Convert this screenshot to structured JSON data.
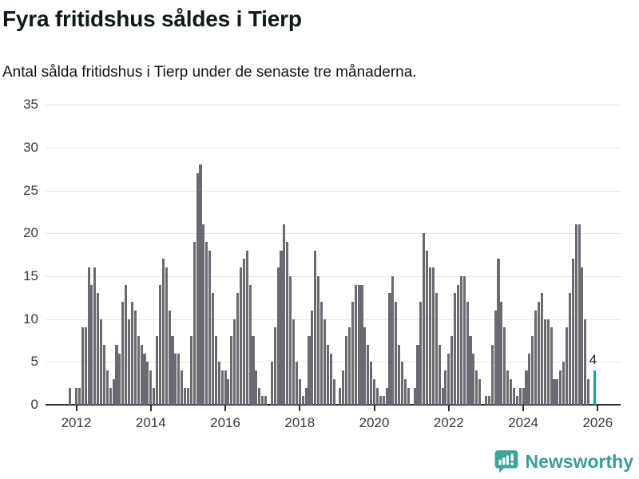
{
  "header": {
    "title": "Fyra fritidshus såldes i Tierp",
    "subtitle": "Antal sålda fritidshus i Tierp under de senaste tre månaderna."
  },
  "chart_data": {
    "type": "bar",
    "title": "Fyra fritidshus såldes i Tierp",
    "subtitle": "Antal sålda fritidshus i Tierp under de senaste tre månaderna.",
    "start_month": "2011-11",
    "end_month": "2025-12",
    "frequency": "monthly",
    "ylim": [
      0,
      35
    ],
    "y_ticks": [
      0,
      5,
      10,
      15,
      20,
      25,
      30,
      35
    ],
    "x_tick_years": [
      "2012",
      "2014",
      "2016",
      "2018",
      "2020",
      "2022",
      "2024",
      "2026"
    ],
    "grid": true,
    "bar_color": "#6a6a72",
    "values": [
      2,
      0,
      2,
      2,
      9,
      9,
      16,
      14,
      16,
      13,
      10,
      7,
      4,
      2,
      3,
      7,
      6,
      12,
      14,
      10,
      12,
      11,
      8,
      7,
      6,
      5,
      4,
      2,
      8,
      14,
      17,
      16,
      11,
      8,
      6,
      6,
      4,
      2,
      2,
      8,
      19,
      27,
      28,
      21,
      19,
      18,
      13,
      8,
      5,
      4,
      4,
      3,
      8,
      10,
      13,
      16,
      17,
      18,
      14,
      8,
      4,
      2,
      1,
      1,
      0,
      5,
      9,
      16,
      18,
      21,
      19,
      15,
      10,
      5,
      3,
      1,
      2,
      8,
      11,
      18,
      15,
      12,
      10,
      7,
      6,
      3,
      0,
      2,
      4,
      8,
      9,
      12,
      14,
      14,
      14,
      9,
      7,
      5,
      3,
      2,
      1,
      1,
      2,
      13,
      15,
      12,
      7,
      5,
      3,
      2,
      0,
      2,
      7,
      12,
      20,
      18,
      16,
      16,
      13,
      7,
      2,
      4,
      6,
      8,
      13,
      14,
      15,
      15,
      12,
      8,
      6,
      4,
      3,
      0,
      1,
      1,
      7,
      11,
      17,
      12,
      9,
      4,
      3,
      2,
      1,
      2,
      2,
      4,
      6,
      8,
      11,
      12,
      13,
      10,
      10,
      9,
      3,
      3,
      4,
      5,
      9,
      13,
      17,
      21,
      21,
      16,
      10,
      3,
      0,
      4
    ],
    "highlight": {
      "index": 169,
      "value": 4,
      "label": "4",
      "color": "#189f98"
    }
  },
  "footer": {
    "brand": "Newsworthy",
    "brand_color": "#3a9d99",
    "logo_icon": "bar-chart-speech-bubble-icon"
  }
}
